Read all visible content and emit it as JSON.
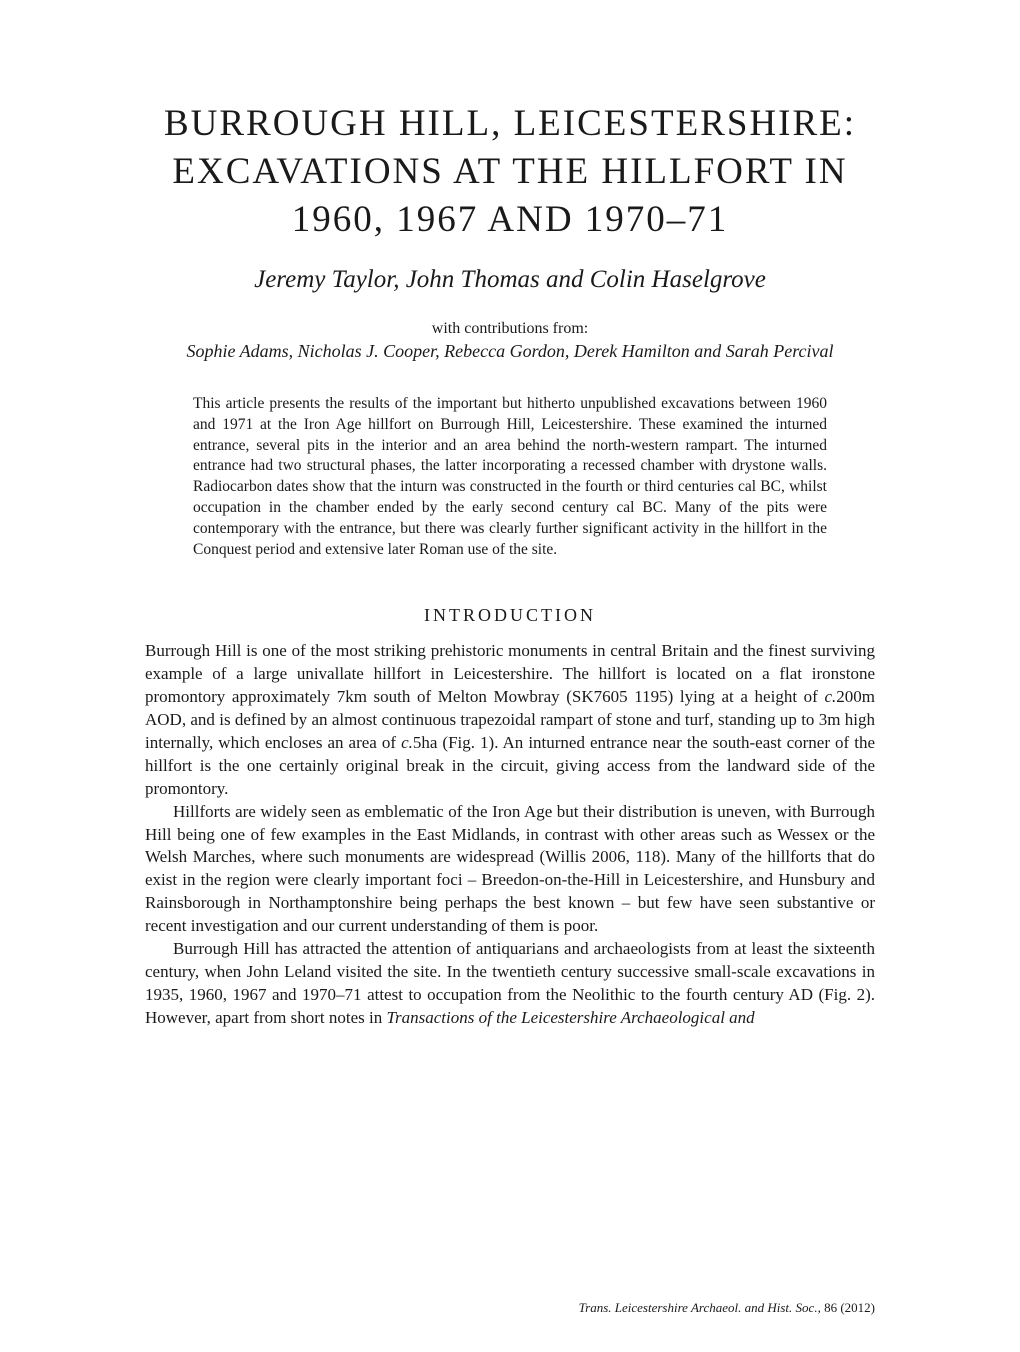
{
  "title": "BURROUGH HILL, LEICESTERSHIRE: EXCAVATIONS AT THE HILLFORT IN 1960, 1967 AND 1970–71",
  "authors": "Jeremy Taylor, John Thomas and Colin Haselgrove",
  "contributions_label": "with contributions from:",
  "contributors": "Sophie Adams, Nicholas J. Cooper, Rebecca Gordon, Derek Hamilton and Sarah Percival",
  "abstract": "This article presents the results of the important but hitherto unpublished excavations between 1960 and 1971 at the Iron Age hillfort on Burrough Hill, Leicestershire. These examined the inturned entrance, several pits in the interior and an area behind the north-western rampart. The inturned entrance had two structural phases, the latter incorporating a recessed chamber with drystone walls. Radiocarbon dates show that the inturn was constructed in the fourth or third centuries cal BC, whilst occupation in the chamber ended by the early second century cal BC. Many of the pits were contemporary with the entrance, but there was clearly further significant activity in the hillfort in the Conquest period and extensive later Roman use of the site.",
  "section_heading": "INTRODUCTION",
  "para1_a": "Burrough Hill is one of the most striking prehistoric monuments in central Britain and the finest surviving example of a large univallate hillfort in Leicestershire. The hillfort is located on a flat ironstone promontory approximately 7km south of Melton Mowbray (SK7605 1195) lying at a height of ",
  "para1_b": "c.",
  "para1_c": "200m AOD, and is defined by an almost continuous trapezoidal rampart of stone and turf, standing up to 3m high internally, which encloses an area of ",
  "para1_d": "c.",
  "para1_e": "5ha (Fig. 1). An inturned entrance near the south-east corner of the hillfort is the one certainly original break in the circuit, giving access from the landward side of the promontory.",
  "para2": "Hillforts are widely seen as emblematic of the Iron Age but their distribution is uneven, with Burrough Hill being one of few examples in the East Midlands, in contrast with other areas such as Wessex or the Welsh Marches, where such monuments are widespread (Willis 2006, 118). Many of the hillforts that do exist in the region were clearly important foci – Breedon-on-the-Hill in Leicestershire, and Hunsbury and Rainsborough in Northamptonshire being perhaps the best known – but few have seen substantive or recent investigation and our current understanding of them is poor.",
  "para3_a": "Burrough Hill has attracted the attention of antiquarians and archaeologists from at least the sixteenth century, when John Leland visited the site. In the twentieth century successive small-scale excavations in 1935, 1960, 1967 and 1970–71 attest to occupation from the Neolithic to the fourth century AD (Fig. 2). However, apart from short notes in ",
  "para3_b": "Transactions of the Leicestershire Archaeological and",
  "footer_italic": "Trans. Leicestershire Archaeol. and Hist. Soc.,",
  "footer_rest": " 86 (2012)"
}
